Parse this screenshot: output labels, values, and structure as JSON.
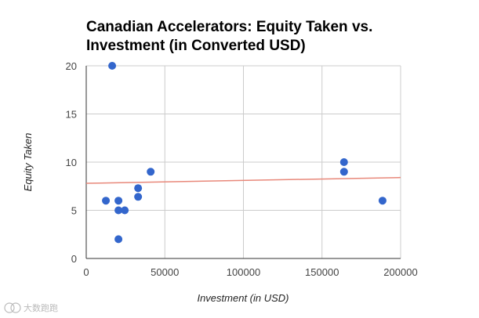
{
  "chart_data": {
    "type": "scatter",
    "title_lines": [
      "Canadian Accelerators: Equity Taken vs.",
      "Investment (in Converted USD)"
    ],
    "xlabel": "Investment (in USD)",
    "ylabel": "Equity Taken",
    "xlim": [
      0,
      200000
    ],
    "ylim": [
      0,
      20
    ],
    "x_ticks": [
      0,
      50000,
      100000,
      150000,
      200000
    ],
    "x_tick_labels": [
      "0",
      "50000",
      "100000",
      "150000",
      "200000"
    ],
    "y_ticks": [
      0,
      5,
      10,
      15,
      20
    ],
    "y_tick_labels": [
      "0",
      "5",
      "10",
      "15",
      "20"
    ],
    "grid": true,
    "legend": "none",
    "series": [
      {
        "color": "#3366cc",
        "points": [
          {
            "x": 12500,
            "y": 6
          },
          {
            "x": 16500,
            "y": 20
          },
          {
            "x": 20500,
            "y": 6
          },
          {
            "x": 20500,
            "y": 5
          },
          {
            "x": 20500,
            "y": 2
          },
          {
            "x": 24500,
            "y": 5
          },
          {
            "x": 33000,
            "y": 7.3
          },
          {
            "x": 33000,
            "y": 6.4
          },
          {
            "x": 41000,
            "y": 9
          },
          {
            "x": 164000,
            "y": 10
          },
          {
            "x": 164000,
            "y": 9
          },
          {
            "x": 188500,
            "y": 6
          }
        ]
      }
    ],
    "trendline": {
      "type": "linear",
      "color": "#e8887a",
      "start": {
        "x": 0,
        "y": 7.8
      },
      "end": {
        "x": 200000,
        "y": 8.4
      }
    }
  },
  "watermark": {
    "text": "大数跑跑",
    "icon": "watermark-logo-icon"
  }
}
